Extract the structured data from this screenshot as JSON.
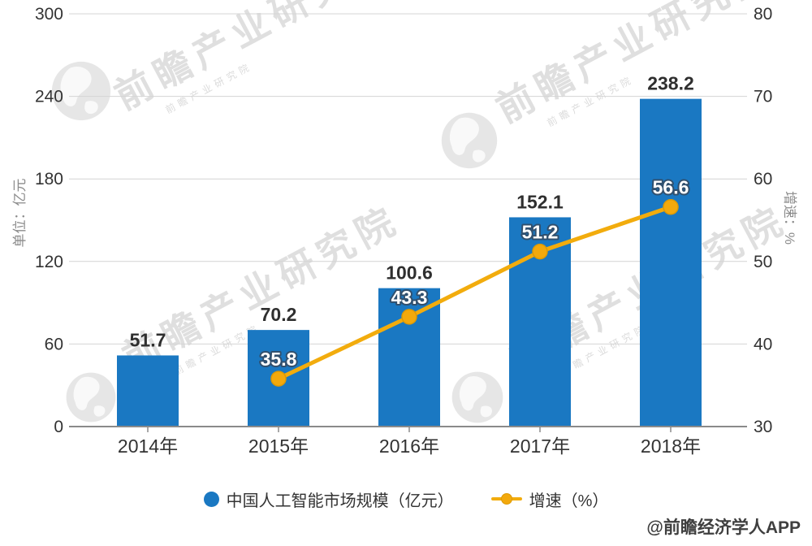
{
  "chart_data": {
    "type": "bar",
    "subtype": "bar+line combo, dual y-axis",
    "categories": [
      "2014年",
      "2015年",
      "2016年",
      "2017年",
      "2018年"
    ],
    "series": [
      {
        "name": "中国人工智能市场规模（亿元）",
        "type": "bar",
        "yaxis": "left",
        "color": "#1a78c2",
        "label_color": "#2f2f2f",
        "values": [
          51.7,
          70.2,
          100.6,
          152.1,
          238.2
        ]
      },
      {
        "name": "增速（%）",
        "type": "line",
        "yaxis": "right",
        "color": "#f2ac0d",
        "dot_color": "#f3a90c",
        "label_color": "#ffffff",
        "values": [
          null,
          35.8,
          43.3,
          51.2,
          56.6
        ]
      }
    ],
    "left_axis": {
      "title": "单位：亿元",
      "min": 0,
      "max": 300,
      "ticks": [
        0,
        60,
        120,
        180,
        240,
        300
      ]
    },
    "right_axis": {
      "title": "增速：%",
      "min": 30,
      "max": 80,
      "ticks": [
        30,
        40,
        50,
        60,
        70,
        80
      ]
    },
    "grid": "horizontal gridlines on",
    "legend_position": "bottom"
  },
  "watermark": {
    "brand_text": "前瞻产业研究院",
    "credit": "@前瞻经济学人APP"
  }
}
